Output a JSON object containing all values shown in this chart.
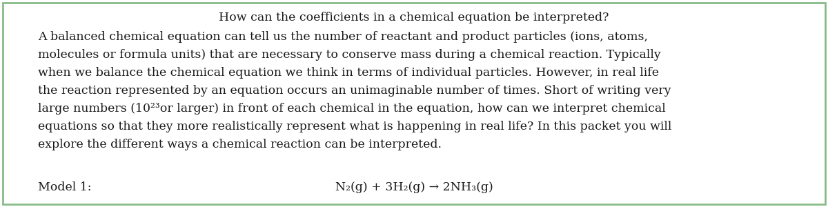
{
  "title": "How can the coefficients in a chemical equation be interpreted?",
  "title_fontsize": 12.5,
  "title_color": "#1a1a1a",
  "body_lines": [
    "A balanced chemical equation can tell us the number of reactant and product particles (ions, atoms,",
    "molecules or formula units) that are necessary to conserve mass during a chemical reaction. Typically",
    "when we balance the chemical equation we think in terms of individual particles. However, in real life",
    "the reaction represented by an equation occurs an unimaginable number of times. Short of writing very",
    "large numbers (10²³or larger) in front of each chemical in the equation, how can we interpret chemical",
    "equations so that they more realistically represent what is happening in real life? In this packet you will",
    "explore the different ways a chemical reaction can be interpreted."
  ],
  "body_fontsize": 12.5,
  "body_color": "#1a1a1a",
  "model_label": "Model 1:",
  "equation": "N₂(g) + 3H₂(g) → 2NH₃(g)",
  "equation_fontsize": 12.5,
  "background_color": "#ffffff",
  "border_color": "#88bb88",
  "border_linewidth": 2.0,
  "fig_width": 12.0,
  "fig_height": 3.0,
  "dpi": 100
}
